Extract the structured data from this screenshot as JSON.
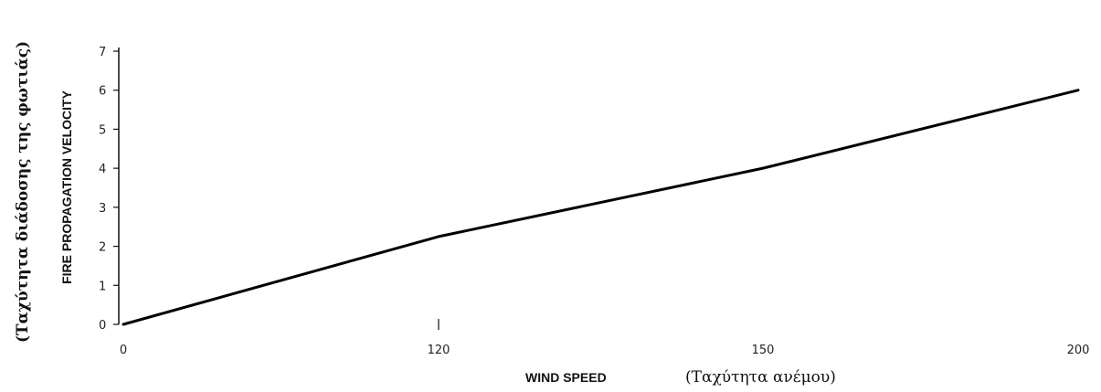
{
  "chart_data": {
    "type": "line",
    "ylabel": "FIRE PROPAGATION VELOCITY",
    "ylabel_secondary": "(Ταχύτητα διάδοσης της φωτιάς)",
    "xlabel": "WIND SPEED",
    "xlabel_secondary": "(Ταχύτητα ανέμου)",
    "x_ticks": [
      "0",
      "120",
      "150",
      "200"
    ],
    "y_ticks": [
      "0",
      "1",
      "2",
      "3",
      "4",
      "5",
      "6",
      "7"
    ],
    "ylim": [
      0,
      7
    ],
    "grid": false,
    "series": [
      {
        "x": [
          "0",
          "120",
          "150",
          "200"
        ],
        "y": [
          0,
          2.25,
          4.0,
          6.0
        ]
      }
    ]
  }
}
